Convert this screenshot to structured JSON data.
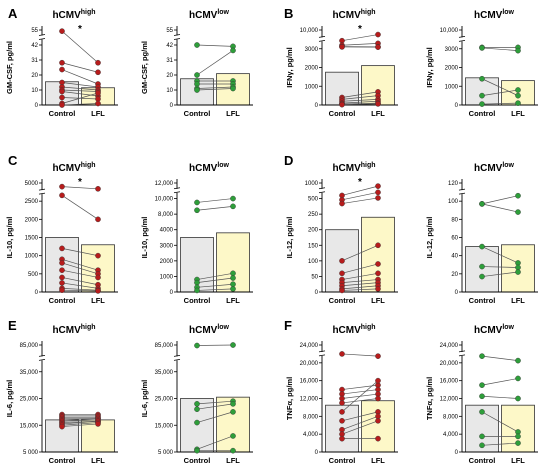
{
  "colors": {
    "high_dot": "#b71c1c",
    "low_dot": "#2e9e3a",
    "control_bar": "#e8e8e8",
    "lfl_bar": "#fdf8c8",
    "line": "#555555"
  },
  "chart_data": [
    {
      "type": "bar",
      "panel": "A",
      "title": "hCMV",
      "title_sup": "high",
      "ylabel": "GM-CSF, pg/ml",
      "categories": [
        "Control",
        "LFL"
      ],
      "yticks": [
        "0",
        "10",
        "20",
        "31",
        "42",
        "55"
      ],
      "ytick_values": [
        0,
        10,
        20,
        31,
        42,
        55
      ],
      "ylim": [
        0,
        55
      ],
      "bars": [
        15.5,
        11.5
      ],
      "significance": "*",
      "pairs": [
        [
          54,
          29
        ],
        [
          29,
          22
        ],
        [
          24,
          14
        ],
        [
          15,
          12
        ],
        [
          12,
          10
        ],
        [
          10,
          9
        ],
        [
          9,
          6
        ],
        [
          5,
          4
        ],
        [
          1,
          8
        ],
        [
          0,
          1
        ]
      ]
    },
    {
      "type": "bar",
      "panel": "A",
      "title": "hCMV",
      "title_sup": "low",
      "ylabel": "GM-CSF, pg/ml",
      "categories": [
        "Control",
        "LFL"
      ],
      "yticks": [
        "0",
        "10",
        "20",
        "31",
        "42",
        "55"
      ],
      "ytick_values": [
        0,
        10,
        20,
        31,
        42,
        55
      ],
      "ylim": [
        0,
        55
      ],
      "bars": [
        17.5,
        21
      ],
      "significance": "",
      "pairs": [
        [
          42,
          41
        ],
        [
          20,
          38
        ],
        [
          16,
          16
        ],
        [
          14,
          14
        ],
        [
          11,
          12
        ],
        [
          10,
          11
        ]
      ]
    },
    {
      "type": "bar",
      "panel": "B",
      "title": "hCMV",
      "title_sup": "high",
      "ylabel": "IFNγ, pg/ml",
      "categories": [
        "Control",
        "LFL"
      ],
      "yticks": [
        "0",
        "1000",
        "2000",
        "3000",
        "10,000"
      ],
      "ytick_values": [
        0,
        1000,
        2000,
        3000,
        10000
      ],
      "ylim": [
        0,
        10000
      ],
      "bars": [
        1750,
        2100
      ],
      "significance": "*",
      "pairs": [
        [
          6000,
          8300
        ],
        [
          4300,
          5000
        ],
        [
          3800,
          3700
        ],
        [
          3700,
          3600
        ],
        [
          400,
          700
        ],
        [
          300,
          500
        ],
        [
          200,
          300
        ],
        [
          100,
          200
        ],
        [
          50,
          100
        ],
        [
          20,
          60
        ]
      ]
    },
    {
      "type": "bar",
      "panel": "B",
      "title": "hCMV",
      "title_sup": "low",
      "ylabel": "IFNγ, pg/ml",
      "categories": [
        "Control",
        "LFL"
      ],
      "yticks": [
        "0",
        "1000",
        "2000",
        "3000",
        "10,000"
      ],
      "ytick_values": [
        0,
        1000,
        2000,
        3000,
        10000
      ],
      "ylim": [
        0,
        10000
      ],
      "bars": [
        1450,
        1300
      ],
      "significance": "",
      "pairs": [
        [
          3500,
          3500
        ],
        [
          3300,
          2900
        ],
        [
          1400,
          500
        ],
        [
          500,
          800
        ],
        [
          50,
          100
        ]
      ]
    },
    {
      "type": "bar",
      "panel": "C",
      "title": "hCMV",
      "title_sup": "high",
      "ylabel": "IL-10, pg/ml",
      "categories": [
        "Control",
        "LFL"
      ],
      "yticks": [
        "0",
        "500",
        "1000",
        "1500",
        "2000",
        "2500",
        "5000"
      ],
      "ytick_values": [
        0,
        500,
        1000,
        1500,
        2000,
        2500,
        5000
      ],
      "ylim": [
        0,
        5000
      ],
      "bars": [
        1500,
        1300
      ],
      "significance": "*",
      "pairs": [
        [
          4500,
          4200
        ],
        [
          3300,
          2000
        ],
        [
          1200,
          1000
        ],
        [
          900,
          600
        ],
        [
          800,
          500
        ],
        [
          600,
          400
        ],
        [
          400,
          200
        ],
        [
          250,
          100
        ],
        [
          100,
          50
        ],
        [
          50,
          30
        ]
      ]
    },
    {
      "type": "bar",
      "panel": "C",
      "title": "hCMV",
      "title_sup": "low",
      "ylabel": "IL-10, pg/ml",
      "categories": [
        "Control",
        "LFL"
      ],
      "yticks": [
        "0",
        "1000",
        "2000",
        "3000",
        "4000",
        "8,000",
        "10,000",
        "12,000"
      ],
      "ytick_values": [
        0,
        1000,
        2000,
        3000,
        4000,
        8000,
        10000,
        12000
      ],
      "ylim": [
        0,
        12000
      ],
      "bars": [
        3500,
        3800
      ],
      "significance": "",
      "pairs": [
        [
          9500,
          10000
        ],
        [
          8500,
          9000
        ],
        [
          800,
          1200
        ],
        [
          600,
          900
        ],
        [
          300,
          500
        ],
        [
          100,
          200
        ]
      ]
    },
    {
      "type": "bar",
      "panel": "D",
      "title": "hCMV",
      "title_sup": "high",
      "ylabel": "IL-12, pg/ml",
      "categories": [
        "Control",
        "LFL"
      ],
      "yticks": [
        "0",
        "50",
        "100",
        "150",
        "200",
        "250",
        "500",
        "1000"
      ],
      "ytick_values": [
        0,
        50,
        100,
        150,
        200,
        250,
        500,
        1000
      ],
      "ylim": [
        0,
        1000
      ],
      "bars": [
        200,
        240
      ],
      "significance": "*",
      "pairs": [
        [
          600,
          900
        ],
        [
          480,
          700
        ],
        [
          420,
          520
        ],
        [
          100,
          150
        ],
        [
          60,
          90
        ],
        [
          40,
          60
        ],
        [
          30,
          40
        ],
        [
          20,
          30
        ],
        [
          10,
          20
        ],
        [
          5,
          10
        ]
      ]
    },
    {
      "type": "bar",
      "panel": "D",
      "title": "hCMV",
      "title_sup": "low",
      "ylabel": "IL-12, pg/ml",
      "categories": [
        "Control",
        "LFL"
      ],
      "yticks": [
        "0",
        "20",
        "40",
        "60",
        "80",
        "100",
        "120"
      ],
      "ytick_values": [
        0,
        20,
        40,
        60,
        80,
        100,
        120
      ],
      "ylim": [
        0,
        120
      ],
      "bars": [
        50,
        52
      ],
      "significance": "",
      "pairs": [
        [
          97,
          106
        ],
        [
          97,
          88
        ],
        [
          50,
          32
        ],
        [
          28,
          27
        ],
        [
          17,
          22
        ]
      ]
    },
    {
      "type": "bar",
      "panel": "E",
      "title": "hCMV",
      "title_sup": "high",
      "ylabel": "IL-6, pg/ml",
      "categories": [
        "Control",
        "LFL"
      ],
      "yticks": [
        "5 000",
        "15,000",
        "25,000",
        "35,000",
        "85,000"
      ],
      "ytick_values": [
        5000,
        15000,
        25000,
        35000,
        85000
      ],
      "ylim": [
        5000,
        85000
      ],
      "bars": [
        17000,
        17000
      ],
      "significance": "",
      "pairs": [
        [
          19000,
          19000
        ],
        [
          18500,
          18500
        ],
        [
          18000,
          18000
        ],
        [
          17500,
          17500
        ],
        [
          17000,
          17500
        ],
        [
          16500,
          17000
        ],
        [
          16000,
          16500
        ],
        [
          15500,
          16500
        ],
        [
          15000,
          16000
        ],
        [
          14500,
          15500
        ]
      ]
    },
    {
      "type": "bar",
      "panel": "E",
      "title": "hCMV",
      "title_sup": "low",
      "ylabel": "IL-6, pg/ml",
      "categories": [
        "Control",
        "LFL"
      ],
      "yticks": [
        "5 000",
        "15,000",
        "25,000",
        "35,000",
        "85,000"
      ],
      "ytick_values": [
        5000,
        15000,
        25000,
        35000,
        85000
      ],
      "ylim": [
        5000,
        85000
      ],
      "bars": [
        25000,
        25500
      ],
      "significance": "",
      "pairs": [
        [
          84000,
          85000
        ],
        [
          23000,
          24000
        ],
        [
          21000,
          23000
        ],
        [
          16000,
          20000
        ],
        [
          6000,
          11000
        ],
        [
          5500,
          5500
        ]
      ]
    },
    {
      "type": "bar",
      "panel": "F",
      "title": "hCMV",
      "title_sup": "high",
      "ylabel": "TNFα, pg/ml",
      "categories": [
        "Control",
        "LFL"
      ],
      "yticks": [
        "0",
        "4,000",
        "8,000",
        "12,000",
        "16,000",
        "20,000",
        "24,000"
      ],
      "ytick_values": [
        0,
        4000,
        8000,
        12000,
        16000,
        20000,
        24000
      ],
      "ylim": [
        0,
        24000
      ],
      "bars": [
        10500,
        11500
      ],
      "significance": "",
      "pairs": [
        [
          22000,
          21500
        ],
        [
          14000,
          15000
        ],
        [
          13000,
          14000
        ],
        [
          12000,
          13000
        ],
        [
          11000,
          12000
        ],
        [
          9000,
          16000
        ],
        [
          7000,
          9000
        ],
        [
          5000,
          8000
        ],
        [
          4000,
          7000
        ],
        [
          3000,
          3000
        ]
      ]
    },
    {
      "type": "bar",
      "panel": "F",
      "title": "hCMV",
      "title_sup": "low",
      "ylabel": "TNFα, pg/ml",
      "categories": [
        "Control",
        "LFL"
      ],
      "yticks": [
        "0",
        "4,000",
        "8,000",
        "12,000",
        "16,000",
        "20,000",
        "24,000"
      ],
      "ytick_values": [
        0,
        4000,
        8000,
        12000,
        16000,
        20000,
        24000
      ],
      "ylim": [
        0,
        24000
      ],
      "bars": [
        10500,
        10500
      ],
      "significance": "",
      "pairs": [
        [
          21500,
          20500
        ],
        [
          15000,
          16500
        ],
        [
          12500,
          12000
        ],
        [
          9000,
          4500
        ],
        [
          3500,
          3500
        ],
        [
          1500,
          2000
        ]
      ]
    }
  ]
}
